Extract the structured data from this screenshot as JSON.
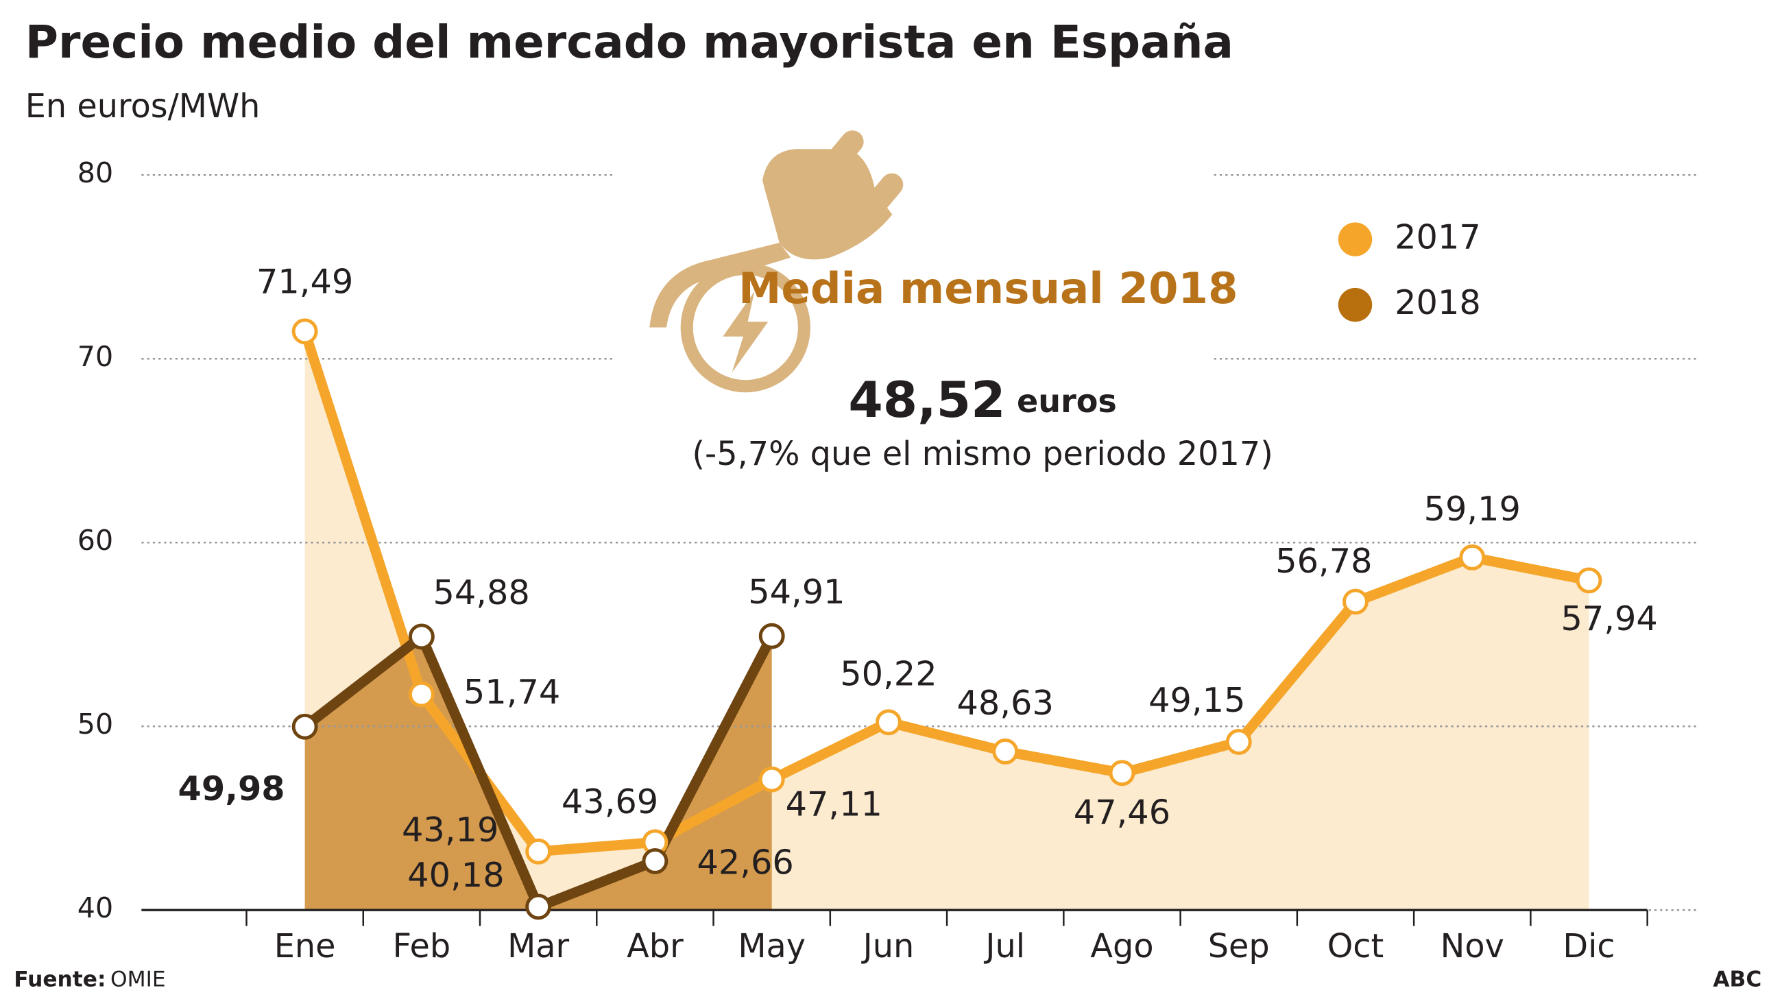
{
  "chart_data": {
    "type": "line",
    "title": "Precio medio del mercado mayorista en España",
    "subtitle": "En euros/MWh",
    "categories": [
      "Ene",
      "Feb",
      "Mar",
      "Abr",
      "May",
      "Jun",
      "Jul",
      "Ago",
      "Sep",
      "Oct",
      "Nov",
      "Dic"
    ],
    "series": [
      {
        "name": "2017",
        "color": "#f5a62a",
        "area_color": "#fcebcf",
        "values": [
          71.49,
          51.74,
          43.19,
          43.69,
          47.11,
          50.22,
          48.63,
          47.46,
          49.15,
          56.78,
          59.19,
          57.94
        ],
        "value_labels": [
          "71,49",
          "51,74",
          "43,19",
          "43,69",
          "47,11",
          "50,22",
          "48,63",
          "47,46",
          "49,15",
          "56,78",
          "59,19",
          "57,94"
        ]
      },
      {
        "name": "2018",
        "color": "#6e4411",
        "legend_color": "#b8700f",
        "area_color": "#d49a4e",
        "values": [
          49.98,
          54.88,
          40.18,
          42.66,
          54.91,
          null,
          null,
          null,
          null,
          null,
          null,
          null
        ],
        "value_labels": [
          "49,98",
          "54,88",
          "40,18",
          "42,66",
          "54,91",
          null,
          null,
          null,
          null,
          null,
          null,
          null
        ]
      }
    ],
    "ylim": [
      40,
      80
    ],
    "yticks": [
      40,
      50,
      60,
      70,
      80
    ],
    "grid": true,
    "legend": "upper right",
    "annotation": {
      "heading": "Media mensual 2018",
      "value": "48,52",
      "unit": "euros",
      "note": "(-5,7% que el mismo periodo 2017)"
    },
    "source": {
      "label": "Fuente:",
      "text": "OMIE"
    },
    "credit": "ABC"
  }
}
